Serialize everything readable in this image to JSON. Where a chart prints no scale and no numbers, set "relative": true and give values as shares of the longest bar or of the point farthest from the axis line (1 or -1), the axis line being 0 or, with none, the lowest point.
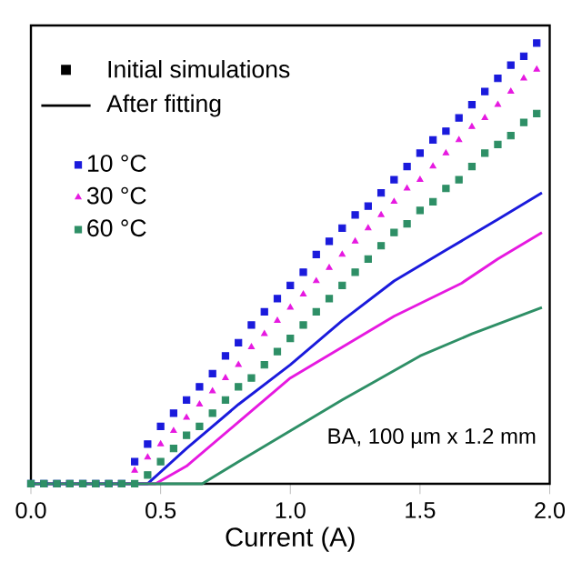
{
  "chart_data": {
    "type": "scatter",
    "xlabel": "Current (A)",
    "relative": true,
    "xlim": [
      0,
      2.0
    ],
    "xticks": [
      {
        "value": 0,
        "label": "0.0"
      },
      0.5,
      {
        "value": 1,
        "label": "1.0"
      },
      1.5,
      {
        "value": 2,
        "label": "2.0"
      }
    ],
    "legend": "top left",
    "grid": false,
    "annotations": [
      "Initial simulations",
      "After fitting",
      "BA, 100 µm x 1.2 mm"
    ],
    "series": [
      {
        "name": "10 °C",
        "marker": "square",
        "color": "#1a1adc",
        "x": [
          0,
          0.05,
          0.1,
          0.15,
          0.2,
          0.25,
          0.3,
          0.35,
          0.4,
          0.45,
          0.5,
          0.55,
          0.6,
          0.65,
          0.7,
          0.75,
          0.8,
          0.85,
          0.9,
          0.95,
          1.0,
          1.05,
          1.1,
          1.15,
          1.2,
          1.25,
          1.3,
          1.35,
          1.4,
          1.45,
          1.5,
          1.55,
          1.6,
          1.65,
          1.7,
          1.75,
          1.8,
          1.85,
          1.9,
          1.95
        ],
        "values": [
          0,
          0,
          0,
          0,
          0,
          0,
          0,
          0,
          0.05,
          0.09,
          0.13,
          0.16,
          0.19,
          0.22,
          0.25,
          0.29,
          0.32,
          0.36,
          0.39,
          0.42,
          0.45,
          0.48,
          0.52,
          0.55,
          0.58,
          0.61,
          0.63,
          0.66,
          0.69,
          0.72,
          0.75,
          0.78,
          0.8,
          0.83,
          0.86,
          0.89,
          0.92,
          0.95,
          0.97,
          1
        ]
      },
      {
        "name": "30 °C",
        "marker": "triangle",
        "color": "#e619e0",
        "x": [
          0.4,
          0.45,
          0.5,
          0.55,
          0.6,
          0.65,
          0.7,
          0.75,
          0.8,
          0.85,
          0.9,
          0.95,
          1.0,
          1.05,
          1.1,
          1.15,
          1.2,
          1.25,
          1.3,
          1.35,
          1.4,
          1.45,
          1.5,
          1.55,
          1.6,
          1.65,
          1.7,
          1.75,
          1.8,
          1.85,
          1.9,
          1.95
        ],
        "values": [
          0.03,
          0.06,
          0.09,
          0.12,
          0.15,
          0.18,
          0.21,
          0.24,
          0.27,
          0.31,
          0.34,
          0.37,
          0.4,
          0.43,
          0.46,
          0.49,
          0.52,
          0.55,
          0.58,
          0.61,
          0.64,
          0.67,
          0.69,
          0.72,
          0.75,
          0.78,
          0.81,
          0.83,
          0.86,
          0.89,
          0.92,
          0.94
        ]
      },
      {
        "name": "60 °C",
        "marker": "square",
        "color": "#2e8f66",
        "x": [
          0,
          0.05,
          0.1,
          0.15,
          0.2,
          0.25,
          0.3,
          0.35,
          0.4,
          0.45,
          0.5,
          0.55,
          0.6,
          0.65,
          0.7,
          0.75,
          0.8,
          0.85,
          0.9,
          0.95,
          1.0,
          1.05,
          1.1,
          1.15,
          1.2,
          1.25,
          1.3,
          1.35,
          1.4,
          1.45,
          1.5,
          1.55,
          1.6,
          1.65,
          1.7,
          1.75,
          1.8,
          1.85,
          1.9,
          1.95
        ],
        "values": [
          0,
          0,
          0,
          0,
          0,
          0,
          0,
          0,
          0,
          0.02,
          0.05,
          0.08,
          0.11,
          0.13,
          0.16,
          0.19,
          0.22,
          0.24,
          0.27,
          0.3,
          0.33,
          0.36,
          0.39,
          0.42,
          0.45,
          0.48,
          0.51,
          0.54,
          0.57,
          0.59,
          0.62,
          0.64,
          0.67,
          0.69,
          0.72,
          0.75,
          0.77,
          0.79,
          0.82,
          0.84
        ]
      },
      {
        "type": "line",
        "line_style": "solid",
        "color": "#1a1adc",
        "x": [
          0,
          0.45,
          0.6,
          0.8,
          1.0,
          1.2,
          1.4,
          1.6,
          1.8,
          1.97
        ],
        "values": [
          0,
          0,
          0.08,
          0.18,
          0.27,
          0.37,
          0.46,
          0.53,
          0.6,
          0.66
        ]
      },
      {
        "type": "line",
        "line_style": "solid",
        "color": "#e619e0",
        "x": [
          0,
          0.48,
          0.6,
          0.8,
          1.0,
          1.2,
          1.4,
          1.66,
          1.8,
          1.97
        ],
        "values": [
          0,
          0,
          0.04,
          0.14,
          0.24,
          0.31,
          0.38,
          0.455,
          0.51,
          0.57
        ]
      },
      {
        "type": "line",
        "line_style": "solid",
        "color": "#2e8f66",
        "x": [
          0,
          0.66,
          0.8,
          1.0,
          1.2,
          1.32,
          1.5,
          1.7,
          1.97
        ],
        "values": [
          0,
          0,
          0.05,
          0.12,
          0.19,
          0.23,
          0.29,
          0.34,
          0.4
        ]
      }
    ]
  }
}
